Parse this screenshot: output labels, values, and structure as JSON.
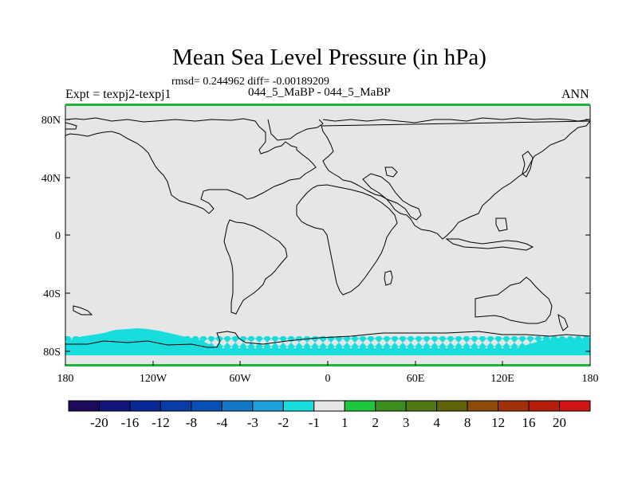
{
  "chart_data": {
    "type": "heatmap",
    "title": "Mean Sea Level Pressure (in hPa)",
    "stats": "rmsd= 0.244962 diff= -0.00189209",
    "left_label": "Expt = texpj2-texpj1",
    "center_label": "044_5_MaBP - 044_5_MaBP",
    "right_label": "ANN",
    "x_ticks": [
      "180",
      "120W",
      "60W",
      "0",
      "60E",
      "120E",
      "180"
    ],
    "y_ticks": [
      "80N",
      "40N",
      "0",
      "40S",
      "80S"
    ],
    "x_range": [
      -180,
      180
    ],
    "y_range": [
      -90,
      90
    ],
    "colorbar": {
      "levels": [
        "-20",
        "-16",
        "-12",
        "-8",
        "-4",
        "-3",
        "-2",
        "-1",
        "1",
        "2",
        "3",
        "4",
        "8",
        "12",
        "16",
        "20"
      ],
      "colors": [
        "#1e0a5a",
        "#14147d",
        "#0a2896",
        "#0a3ca5",
        "#0a50b4",
        "#1478c8",
        "#1ea0dc",
        "#19dcdc",
        "#e6e6e6",
        "#1ec83c",
        "#3c8c1e",
        "#507814",
        "#5f640a",
        "#8c4b0a",
        "#a0320a",
        "#b41e0a",
        "#d21414"
      ]
    },
    "background_color": "#e6e6e6",
    "anomaly_regions": [
      {
        "name": "antarctic-negative-band",
        "lon": [
          -180,
          180
        ],
        "lat": [
          -90,
          -73
        ],
        "value_class": "-2 to -1",
        "color": "#19dcdc"
      }
    ]
  }
}
